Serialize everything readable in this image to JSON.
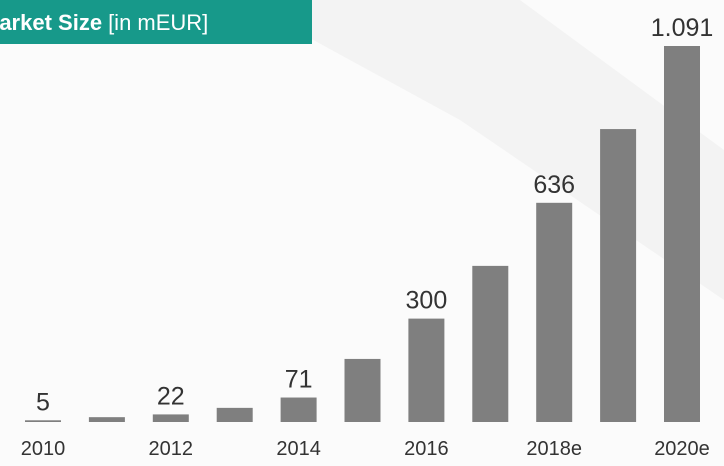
{
  "chart_data": {
    "type": "bar",
    "title": "Market Size",
    "subtitle": "[in mEUR]",
    "categories": [
      "2010",
      null,
      "2012",
      null,
      "2014",
      null,
      "2016",
      null,
      "2018e",
      null,
      "2020e"
    ],
    "values": [
      5,
      14,
      22,
      41,
      71,
      183,
      300,
      453,
      636,
      850,
      1091
    ],
    "value_labels": [
      "5",
      null,
      "22",
      null,
      "71",
      null,
      "300",
      null,
      "636",
      null,
      "1.091"
    ],
    "color": "#7f7f7f",
    "title_color": "#17998a"
  }
}
